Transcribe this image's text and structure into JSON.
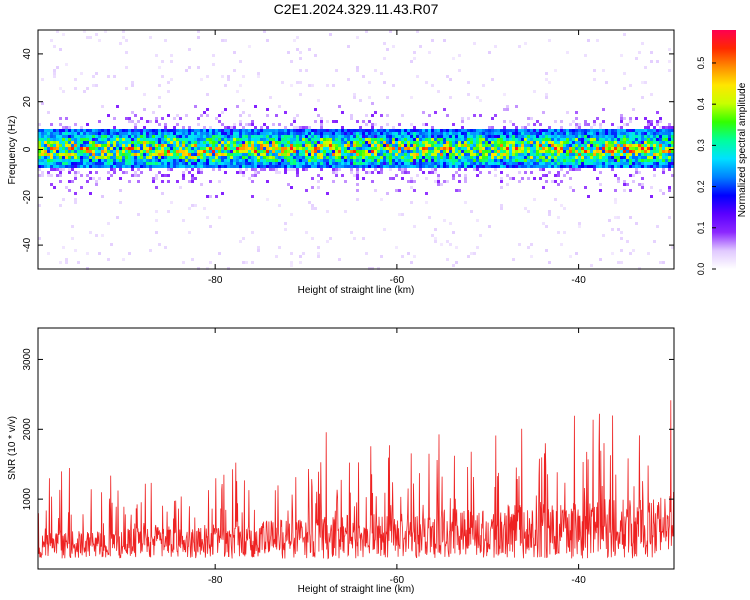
{
  "title": "C2E1.2024.329.11.43.R07",
  "chart_data": [
    {
      "type": "heatmap",
      "xlabel": "Height of straight line (km)",
      "ylabel": "Frequency (Hz)",
      "xlim": [
        -99.5,
        -29.5
      ],
      "ylim": [
        -50,
        50
      ],
      "xticks": [
        -80,
        -60,
        -40
      ],
      "yticks": [
        -40,
        -20,
        0,
        20,
        40
      ],
      "yticklabels": [
        "-40",
        "-20",
        "0",
        "20",
        "40"
      ],
      "grid": false,
      "colorbar": {
        "label": "Normalized spectral amplitude",
        "range": [
          0,
          0.58
        ],
        "ticks": [
          0.0,
          0.1,
          0.2,
          0.3,
          0.4,
          0.5
        ],
        "ticklabels": [
          "0.0",
          "0.1",
          "0.2",
          "0.3",
          "0.4",
          "0.5"
        ],
        "colors": [
          "#ffffff",
          "#e0c8ff",
          "#8c28ff",
          "#5a00ff",
          "#0000ff",
          "#0082ff",
          "#00e1ff",
          "#00ff9b",
          "#32ff00",
          "#c8ff00",
          "#ffe600",
          "#ff8c00",
          "#ff2800",
          "#ff0050"
        ]
      },
      "description_band": {
        "center_hz": 0,
        "half_width_hz": 8
      }
    },
    {
      "type": "line",
      "xlabel": "Height of straight line (km)",
      "ylabel": "SNR (10 * v/v)",
      "xlim": [
        -99.5,
        -29.5
      ],
      "ylim": [
        0,
        3450
      ],
      "xticks": [
        -80,
        -60,
        -40
      ],
      "yticks": [
        1000,
        2000,
        3000
      ],
      "color": "#ee2222",
      "grid": false
    }
  ]
}
